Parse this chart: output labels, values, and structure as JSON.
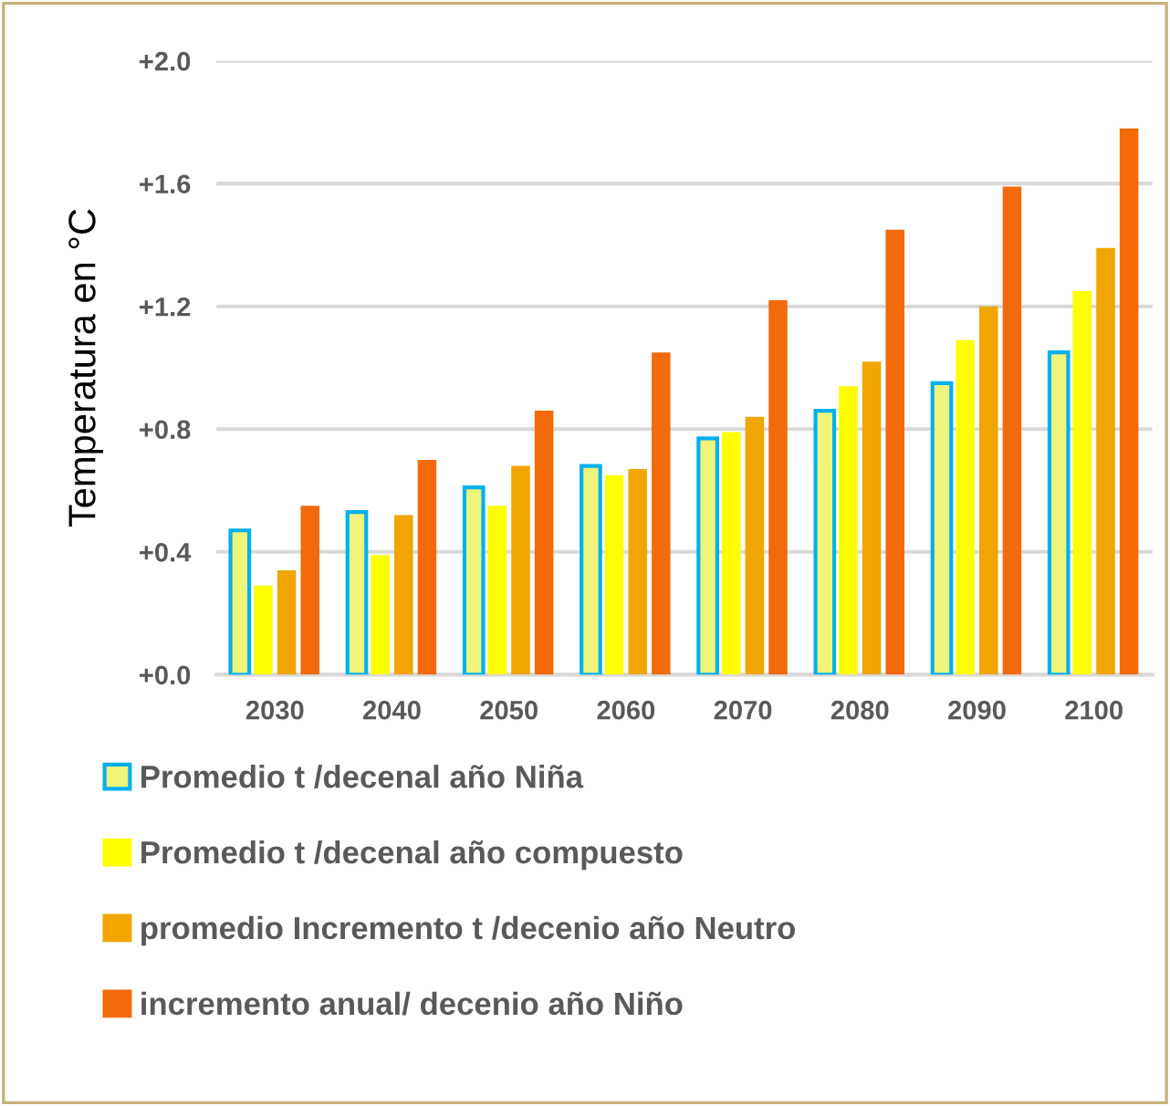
{
  "chart_data": {
    "type": "bar",
    "ylabel": "Temperatura en °C",
    "categories": [
      "2030",
      "2040",
      "2050",
      "2060",
      "2070",
      "2080",
      "2090",
      "2100"
    ],
    "series": [
      {
        "name": "Promedio t /decenal año Niña",
        "color": "#eef57a",
        "values": [
          0.47,
          0.53,
          0.61,
          0.68,
          0.77,
          0.86,
          0.95,
          1.05
        ]
      },
      {
        "name": "Promedio t /decenal año compuesto",
        "color": "#ffff00",
        "values": [
          0.29,
          0.39,
          0.55,
          0.65,
          0.79,
          0.94,
          1.09,
          1.25
        ]
      },
      {
        "name": "promedio Incremento t /decenio año Neutro",
        "color": "#f0a500",
        "values": [
          0.34,
          0.52,
          0.68,
          0.67,
          0.84,
          1.02,
          1.2,
          1.39
        ]
      },
      {
        "name": "incremento anual/ decenio año Niño",
        "color": "#f26a0a",
        "values": [
          0.55,
          0.7,
          0.86,
          1.05,
          1.22,
          1.45,
          1.59,
          1.78
        ]
      }
    ],
    "ylim": [
      0,
      2.0
    ],
    "yticks": [
      {
        "value": 0,
        "label": "+0.0"
      },
      {
        "value": 0.4,
        "label": "+0.4"
      },
      {
        "value": 0.8,
        "label": "+0.8"
      },
      {
        "value": 1.2,
        "label": "+1.2"
      },
      {
        "value": 1.6,
        "label": "+1.6"
      },
      {
        "value": 2.0,
        "label": "+2.0"
      }
    ],
    "grid": "y",
    "legend": "bottom"
  }
}
